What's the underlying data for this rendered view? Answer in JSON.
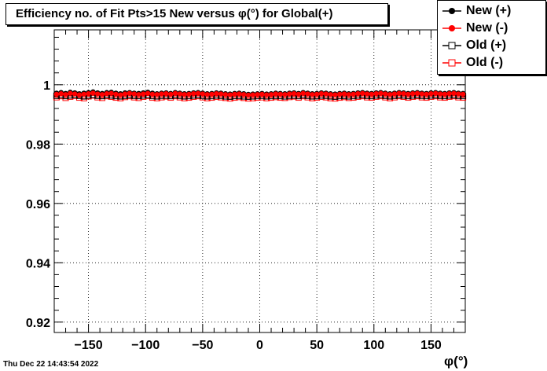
{
  "title": "Efficiency no. of Fit Pts>15 New versus φ(°) for Global(+)",
  "timestamp": "Thu Dec 22 14:43:54 2022",
  "legend": {
    "items": [
      {
        "label": "New (+)",
        "marker": "filled-circle",
        "color": "#000000"
      },
      {
        "label": "New (-)",
        "marker": "filled-circle",
        "color": "#ff0000"
      },
      {
        "label": "Old (+)",
        "marker": "open-square",
        "color": "#000000"
      },
      {
        "label": "Old (-)",
        "marker": "open-square",
        "color": "#ff0000"
      }
    ]
  },
  "chart_data": {
    "type": "scatter",
    "title": "Efficiency no. of Fit Pts>15 New versus φ(°) for Global(+)",
    "xlabel": "φ(°)",
    "ylabel": "",
    "xlim": [
      -180,
      180
    ],
    "ylim": [
      0.9165,
      1.0185
    ],
    "grid": true,
    "legend_position": "top-right",
    "x_ticks": [
      -150,
      -100,
      -50,
      0,
      50,
      100,
      150
    ],
    "x_tick_labels": [
      "−150",
      "−100",
      "−50",
      "0",
      "50",
      "100",
      "150"
    ],
    "y_ticks": [
      0.92,
      0.94,
      0.96,
      0.98,
      1.0
    ],
    "y_tick_labels": [
      "0.92",
      "0.94",
      "0.96",
      "0.98",
      "1"
    ],
    "x": [
      -178,
      -174,
      -170,
      -166,
      -162,
      -158,
      -154,
      -150,
      -146,
      -142,
      -138,
      -134,
      -130,
      -126,
      -122,
      -118,
      -114,
      -110,
      -106,
      -102,
      -98,
      -94,
      -90,
      -86,
      -82,
      -78,
      -74,
      -70,
      -66,
      -62,
      -58,
      -54,
      -50,
      -46,
      -42,
      -38,
      -34,
      -30,
      -26,
      -22,
      -18,
      -14,
      -10,
      -6,
      -2,
      2,
      6,
      10,
      14,
      18,
      22,
      26,
      30,
      34,
      38,
      42,
      46,
      50,
      54,
      58,
      62,
      66,
      70,
      74,
      78,
      82,
      86,
      90,
      94,
      98,
      102,
      106,
      110,
      114,
      118,
      122,
      126,
      130,
      134,
      138,
      142,
      146,
      150,
      154,
      158,
      162,
      166,
      170,
      174,
      178
    ],
    "series": [
      {
        "name": "New (+)",
        "color": "#000000",
        "marker": "filled-circle",
        "values": [
          0.9972,
          0.9974,
          0.9971,
          0.9975,
          0.9973,
          0.997,
          0.9972,
          0.9974,
          0.9976,
          0.9973,
          0.9971,
          0.9974,
          0.9975,
          0.9972,
          0.997,
          0.9973,
          0.9974,
          0.9972,
          0.9971,
          0.9973,
          0.9975,
          0.9972,
          0.997,
          0.9972,
          0.9973,
          0.9971,
          0.9974,
          0.9972,
          0.997,
          0.9971,
          0.9973,
          0.9974,
          0.9972,
          0.997,
          0.9971,
          0.9973,
          0.9972,
          0.997,
          0.9969,
          0.9971,
          0.9972,
          0.997,
          0.9968,
          0.9969,
          0.997,
          0.9971,
          0.9969,
          0.997,
          0.9972,
          0.9971,
          0.997,
          0.9972,
          0.9973,
          0.9971,
          0.9974,
          0.9972,
          0.997,
          0.9971,
          0.9973,
          0.9972,
          0.997,
          0.9969,
          0.9971,
          0.9972,
          0.997,
          0.9971,
          0.9973,
          0.9974,
          0.9972,
          0.9971,
          0.9973,
          0.9974,
          0.9972,
          0.997,
          0.9972,
          0.9974,
          0.9973,
          0.9971,
          0.9973,
          0.9974,
          0.9972,
          0.9971,
          0.9973,
          0.9974,
          0.9972,
          0.9971,
          0.9973,
          0.9974,
          0.9972,
          0.9971
        ]
      },
      {
        "name": "New (-)",
        "color": "#ff0000",
        "marker": "filled-circle",
        "values": [
          0.9968,
          0.997,
          0.9967,
          0.9971,
          0.9969,
          0.9966,
          0.9968,
          0.997,
          0.9972,
          0.9969,
          0.9967,
          0.997,
          0.9971,
          0.9968,
          0.9966,
          0.9969,
          0.9971,
          0.9969,
          0.9967,
          0.9969,
          0.9971,
          0.9968,
          0.9967,
          0.9969,
          0.997,
          0.9968,
          0.9971,
          0.9969,
          0.9967,
          0.9968,
          0.997,
          0.9971,
          0.9969,
          0.9967,
          0.9968,
          0.997,
          0.9969,
          0.9967,
          0.9966,
          0.9968,
          0.9969,
          0.9967,
          0.9965,
          0.9966,
          0.9967,
          0.9968,
          0.9966,
          0.9967,
          0.9969,
          0.9968,
          0.9967,
          0.9969,
          0.997,
          0.9968,
          0.9971,
          0.9969,
          0.9967,
          0.9968,
          0.997,
          0.9969,
          0.9967,
          0.9966,
          0.9968,
          0.9969,
          0.9967,
          0.9968,
          0.997,
          0.9971,
          0.9969,
          0.9968,
          0.997,
          0.9971,
          0.9969,
          0.9967,
          0.9969,
          0.9971,
          0.997,
          0.9968,
          0.997,
          0.9971,
          0.9969,
          0.9968,
          0.997,
          0.9971,
          0.9969,
          0.9968,
          0.997,
          0.9971,
          0.9969,
          0.9968
        ]
      },
      {
        "name": "Old (+)",
        "color": "#000000",
        "marker": "open-square",
        "values": [
          0.9963,
          0.9965,
          0.9962,
          0.9964,
          0.9966,
          0.9963,
          0.9961,
          0.9964,
          0.9966,
          0.9963,
          0.9962,
          0.9965,
          0.9964,
          0.9962,
          0.9961,
          0.9963,
          0.9965,
          0.9963,
          0.9962,
          0.9964,
          0.9965,
          0.9962,
          0.9961,
          0.9963,
          0.9964,
          0.9962,
          0.9965,
          0.9963,
          0.9961,
          0.9962,
          0.9964,
          0.9965,
          0.9963,
          0.9961,
          0.9962,
          0.9964,
          0.9963,
          0.9961,
          0.996,
          0.9962,
          0.9963,
          0.9961,
          0.996,
          0.9961,
          0.9962,
          0.9963,
          0.9961,
          0.9962,
          0.9963,
          0.9962,
          0.9961,
          0.9963,
          0.9964,
          0.9962,
          0.9965,
          0.9963,
          0.9961,
          0.9962,
          0.9964,
          0.9963,
          0.9961,
          0.996,
          0.9962,
          0.9963,
          0.9961,
          0.9962,
          0.9964,
          0.9965,
          0.9963,
          0.9962,
          0.9964,
          0.9965,
          0.9963,
          0.9961,
          0.9963,
          0.9965,
          0.9964,
          0.9962,
          0.9964,
          0.9965,
          0.9963,
          0.9962,
          0.9964,
          0.9965,
          0.9963,
          0.9962,
          0.9964,
          0.9965,
          0.9963,
          0.9962
        ]
      },
      {
        "name": "Old (-)",
        "color": "#ff0000",
        "marker": "open-square",
        "values": [
          0.9958,
          0.9962,
          0.9956,
          0.996,
          0.9963,
          0.9957,
          0.9955,
          0.9961,
          0.9964,
          0.9958,
          0.9956,
          0.9962,
          0.996,
          0.9957,
          0.9955,
          0.9959,
          0.9962,
          0.9958,
          0.9956,
          0.996,
          0.9963,
          0.9957,
          0.9955,
          0.9958,
          0.9961,
          0.9957,
          0.9962,
          0.9958,
          0.9955,
          0.9957,
          0.996,
          0.9962,
          0.9958,
          0.9955,
          0.9957,
          0.996,
          0.9958,
          0.9956,
          0.9954,
          0.9957,
          0.9959,
          0.9956,
          0.9954,
          0.9955,
          0.9957,
          0.9958,
          0.9955,
          0.9957,
          0.9959,
          0.9957,
          0.9956,
          0.9959,
          0.9961,
          0.9957,
          0.9962,
          0.9958,
          0.9955,
          0.9957,
          0.996,
          0.9958,
          0.9955,
          0.9954,
          0.9957,
          0.9959,
          0.9956,
          0.9957,
          0.996,
          0.9962,
          0.9958,
          0.9957,
          0.996,
          0.9962,
          0.9958,
          0.9955,
          0.9958,
          0.9962,
          0.996,
          0.9957,
          0.996,
          0.9962,
          0.9958,
          0.9957,
          0.996,
          0.9962,
          0.9958,
          0.9957,
          0.996,
          0.9962,
          0.9958,
          0.9957
        ]
      }
    ]
  }
}
